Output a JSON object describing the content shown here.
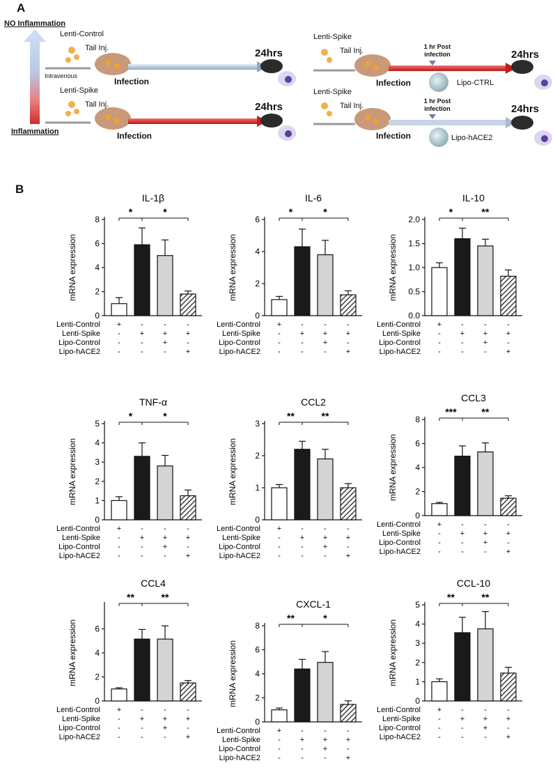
{
  "figure": {
    "panel_a_label": "A",
    "panel_b_label": "B"
  },
  "schematic": {
    "no_inflammation": "NO Inflammation",
    "inflammation": "Inflammation",
    "lenti_control": "Lenti-Control",
    "lenti_spike": "Lenti-Spike",
    "tail_inj": "Tail Inj.",
    "intravenous": "Intravenous",
    "infection": "Infection",
    "hrs24": "24hrs",
    "post_infection": "1 hr Post infection",
    "lipo_ctrl": "Lipo-CTRL",
    "lipo_hace2": "Lipo-hACE2",
    "colors": {
      "blue": "#9fb8d8",
      "red": "#d42a2a",
      "mouse_brown": "#b98a6a",
      "mouse_dark": "#2b2b2b",
      "cell_purple": "#5b3fa0"
    }
  },
  "treatment_table": {
    "rows": [
      "Lenti-Control",
      "Lenti-Spike",
      "Lipo-Control",
      "Lipo-hACE2"
    ],
    "marks": [
      [
        "+",
        "-",
        "-",
        "-"
      ],
      [
        "-",
        "+",
        "+",
        "+"
      ],
      [
        "-",
        "-",
        "+",
        "-"
      ],
      [
        "-",
        "-",
        "-",
        "+"
      ]
    ]
  },
  "chart_data": [
    {
      "type": "bar",
      "title": "IL-1β",
      "ylabel": "mRNA expression",
      "ylim": [
        0,
        8
      ],
      "yticks": [
        0,
        2,
        4,
        6,
        8
      ],
      "values": [
        1.0,
        5.9,
        5.0,
        1.8
      ],
      "errors": [
        0.5,
        1.4,
        1.3,
        0.25
      ],
      "sig": [
        {
          "from": 1,
          "to": 0,
          "label": "*"
        },
        {
          "from": 1,
          "to": 3,
          "label": "*"
        }
      ],
      "fills": [
        "white",
        "black",
        "lightgray",
        "hatch"
      ]
    },
    {
      "type": "bar",
      "title": "IL-6",
      "ylabel": "mRNA expression",
      "ylim": [
        0,
        6
      ],
      "yticks": [
        0,
        2,
        4,
        6
      ],
      "values": [
        1.0,
        4.3,
        3.8,
        1.3
      ],
      "errors": [
        0.2,
        1.1,
        0.9,
        0.25
      ],
      "sig": [
        {
          "from": 1,
          "to": 0,
          "label": "*"
        },
        {
          "from": 1,
          "to": 3,
          "label": "*"
        }
      ],
      "fills": [
        "white",
        "black",
        "lightgray",
        "hatch"
      ]
    },
    {
      "type": "bar",
      "title": "IL-10",
      "ylabel": "mRNA expression",
      "ylim": [
        0,
        2.0
      ],
      "yticks": [
        "0.0",
        "0.5",
        "1.0",
        "1.5",
        "2.0"
      ],
      "values": [
        1.0,
        1.6,
        1.45,
        0.82
      ],
      "errors": [
        0.1,
        0.22,
        0.14,
        0.13
      ],
      "sig": [
        {
          "from": 1,
          "to": 0,
          "label": "*"
        },
        {
          "from": 1,
          "to": 3,
          "label": "**"
        }
      ],
      "fills": [
        "white",
        "black",
        "lightgray",
        "hatch"
      ]
    },
    {
      "type": "bar",
      "title": "TNF-α",
      "ylabel": "mRNA expression",
      "ylim": [
        0,
        5
      ],
      "yticks": [
        0,
        1,
        2,
        3,
        4,
        5
      ],
      "values": [
        1.0,
        3.3,
        2.8,
        1.25
      ],
      "errors": [
        0.2,
        0.7,
        0.55,
        0.3
      ],
      "sig": [
        {
          "from": 1,
          "to": 0,
          "label": "*"
        },
        {
          "from": 1,
          "to": 3,
          "label": "*"
        }
      ],
      "fills": [
        "white",
        "black",
        "lightgray",
        "hatch"
      ]
    },
    {
      "type": "bar",
      "title": "CCL2",
      "ylabel": "mRNA expression",
      "ylim": [
        0,
        3
      ],
      "yticks": [
        0,
        1,
        2,
        3
      ],
      "values": [
        1.0,
        2.2,
        1.9,
        1.0
      ],
      "errors": [
        0.1,
        0.25,
        0.3,
        0.13
      ],
      "sig": [
        {
          "from": 1,
          "to": 0,
          "label": "**"
        },
        {
          "from": 1,
          "to": 3,
          "label": "**"
        }
      ],
      "fills": [
        "white",
        "black",
        "lightgray",
        "hatch"
      ]
    },
    {
      "type": "bar",
      "title": "CCL3",
      "ylabel": "mRNA expression",
      "ylim": [
        0,
        8
      ],
      "yticks": [
        0,
        2,
        4,
        6,
        8
      ],
      "values": [
        1.0,
        4.95,
        5.3,
        1.45
      ],
      "errors": [
        0.1,
        0.85,
        0.75,
        0.2
      ],
      "sig": [
        {
          "from": 1,
          "to": 0,
          "label": "***"
        },
        {
          "from": 1,
          "to": 3,
          "label": "**"
        }
      ],
      "fills": [
        "white",
        "black",
        "lightgray",
        "hatch"
      ]
    },
    {
      "type": "bar",
      "title": "CCL4",
      "ylabel": "mRNA expression",
      "ylim": [
        0,
        8
      ],
      "yticks": [
        0,
        2,
        4,
        6
      ],
      "values": [
        1.0,
        5.15,
        5.15,
        1.5
      ],
      "errors": [
        0.1,
        0.8,
        1.1,
        0.2
      ],
      "sig": [
        {
          "from": 1,
          "to": 0,
          "label": "**"
        },
        {
          "from": 1,
          "to": 3,
          "label": "**"
        }
      ],
      "fills": [
        "white",
        "black",
        "lightgray",
        "hatch"
      ]
    },
    {
      "type": "bar",
      "title": "CXCL-1",
      "ylabel": "mRNA expression",
      "ylim": [
        0,
        8
      ],
      "yticks": [
        0,
        2,
        4,
        6,
        8
      ],
      "values": [
        1.0,
        4.4,
        4.95,
        1.45
      ],
      "errors": [
        0.15,
        0.8,
        0.9,
        0.3
      ],
      "sig": [
        {
          "from": 1,
          "to": 0,
          "label": "**"
        },
        {
          "from": 1,
          "to": 3,
          "label": "*"
        }
      ],
      "fills": [
        "white",
        "black",
        "lightgray",
        "hatch"
      ]
    },
    {
      "type": "bar",
      "title": "CCL-10",
      "ylabel": "mRNA expression",
      "ylim": [
        0,
        5
      ],
      "yticks": [
        0,
        1,
        2,
        3,
        4,
        5
      ],
      "values": [
        1.0,
        3.55,
        3.75,
        1.45
      ],
      "errors": [
        0.15,
        0.8,
        0.9,
        0.3
      ],
      "sig": [
        {
          "from": 1,
          "to": 0,
          "label": "**"
        },
        {
          "from": 1,
          "to": 3,
          "label": "**"
        }
      ],
      "fills": [
        "white",
        "black",
        "lightgray",
        "hatch"
      ]
    }
  ]
}
